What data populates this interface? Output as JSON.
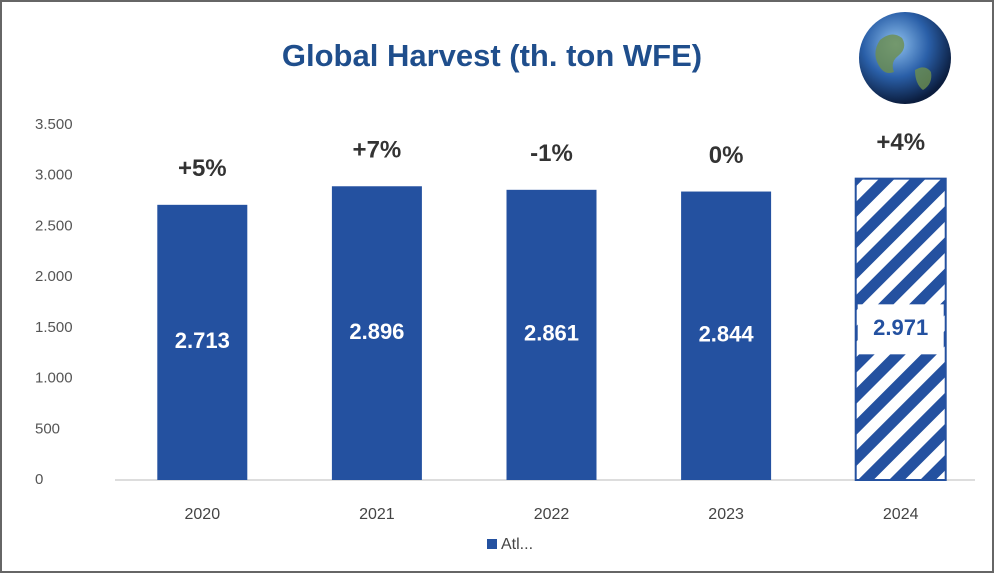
{
  "chart_data": {
    "type": "bar",
    "title": "Global Harvest (th. ton WFE)",
    "categories": [
      "2020",
      "2021",
      "2022",
      "2023",
      "2024"
    ],
    "series": [
      {
        "name": "Atl...",
        "color": "#2451a0",
        "values": [
          2713,
          2896,
          2861,
          2844,
          2971
        ],
        "value_labels": [
          "2.713",
          "2.896",
          "2.861",
          "2.844",
          "2.971"
        ],
        "hatched": [
          false,
          false,
          false,
          false,
          true
        ]
      }
    ],
    "annotations": [
      "+5%",
      "+7%",
      "-1%",
      "0%",
      "+4%"
    ],
    "ylim": [
      0,
      3500
    ],
    "yticks": [
      0,
      500,
      {
        "value": 1000,
        "label": "1.000"
      },
      {
        "value": 1500,
        "label": "1.500"
      },
      {
        "value": 2000,
        "label": "2.000"
      },
      {
        "value": 2500,
        "label": "2.500"
      },
      {
        "value": 3000,
        "label": "3.000"
      },
      {
        "value": 3500,
        "label": "3.500"
      }
    ],
    "grid": false,
    "legend": "bottom"
  }
}
